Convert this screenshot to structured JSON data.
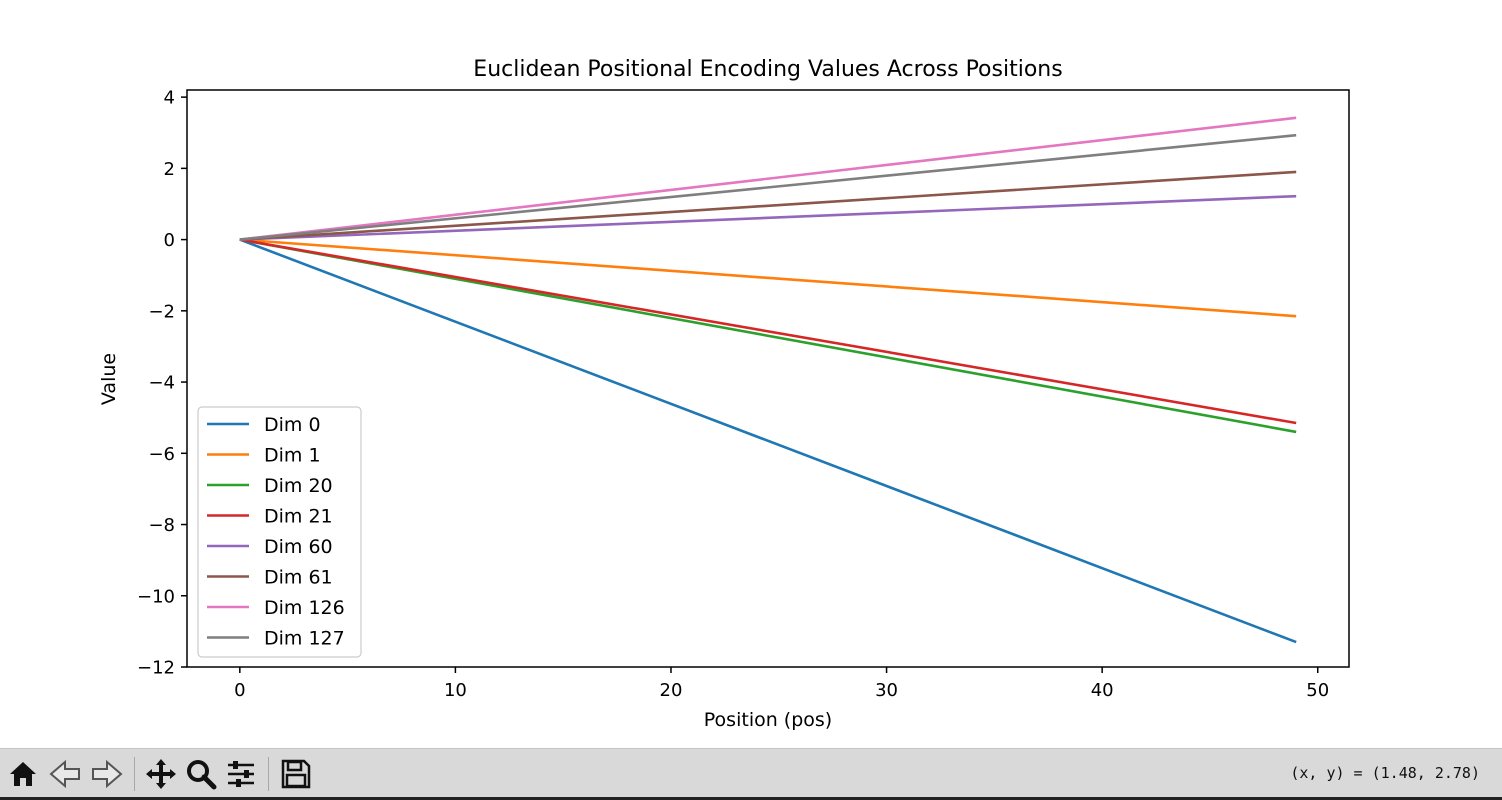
{
  "window": {
    "toolbar": {
      "home_icon": "home-icon",
      "back_icon": "back-arrow-icon",
      "forward_icon": "forward-arrow-icon",
      "pan_icon": "pan-move-icon",
      "zoom_icon": "zoom-magnifier-icon",
      "configure_icon": "configure-subplots-icon",
      "save_icon": "save-floppy-icon",
      "coordinates": "(x, y) = (1.48, 2.78)"
    }
  },
  "chart_data": {
    "type": "line",
    "title": "Euclidean Positional Encoding Values Across Positions",
    "xlabel": "Position (pos)",
    "ylabel": "Value",
    "xlim": [
      -2.45,
      51.45
    ],
    "ylim": [
      -12.0,
      4.2
    ],
    "xticks": [
      0,
      10,
      20,
      30,
      40,
      50
    ],
    "xtick_labels": [
      "0",
      "10",
      "20",
      "30",
      "40",
      "50"
    ],
    "yticks": [
      4,
      2,
      0,
      -2,
      -4,
      -6,
      -8,
      -10,
      -12
    ],
    "ytick_labels": [
      "4",
      "2",
      "0",
      "−2",
      "−4",
      "−6",
      "−8",
      "−10",
      "−12"
    ],
    "grid": false,
    "legend_position": "lower-left",
    "x": [
      0,
      49
    ],
    "series": [
      {
        "name": "Dim 0",
        "color": "#1f77b4",
        "values": [
          0,
          -11.3
        ]
      },
      {
        "name": "Dim 1",
        "color": "#ff7f0e",
        "values": [
          0,
          -2.15
        ]
      },
      {
        "name": "Dim 20",
        "color": "#2ca02c",
        "values": [
          0,
          -5.4
        ]
      },
      {
        "name": "Dim 21",
        "color": "#d62728",
        "values": [
          0,
          -5.15
        ]
      },
      {
        "name": "Dim 60",
        "color": "#9467bd",
        "values": [
          0,
          1.22
        ]
      },
      {
        "name": "Dim 61",
        "color": "#8c564b",
        "values": [
          0,
          1.9
        ]
      },
      {
        "name": "Dim 126",
        "color": "#e377c2",
        "values": [
          0,
          3.42
        ]
      },
      {
        "name": "Dim 127",
        "color": "#7f7f7f",
        "values": [
          0,
          2.93
        ]
      }
    ]
  }
}
